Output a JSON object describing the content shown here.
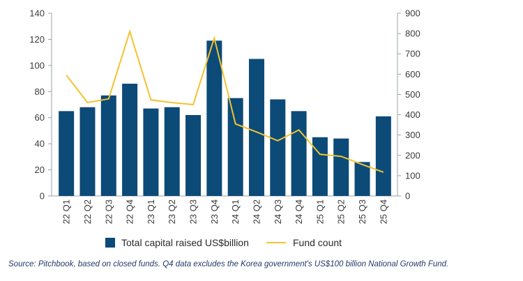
{
  "chart_data": {
    "type": "bar+line",
    "categories": [
      "22 Q1",
      "22 Q2",
      "22 Q3",
      "22 Q4",
      "23 Q1",
      "23 Q2",
      "23 Q3",
      "23 Q4",
      "24 Q1",
      "24 Q2",
      "24 Q3",
      "24 Q4",
      "25 Q1",
      "25 Q2",
      "25 Q3",
      "25 Q4"
    ],
    "series": [
      {
        "name": "Total capital raised US$billion",
        "type": "bar",
        "axis": "left",
        "color": "#0c4a78",
        "values": [
          65,
          68,
          77,
          86,
          67,
          68,
          62,
          119,
          75,
          105,
          74,
          65,
          45,
          44,
          26,
          61
        ]
      },
      {
        "name": "Fund count",
        "type": "line",
        "axis": "right",
        "color": "#f2c330",
        "values": [
          595,
          460,
          478,
          810,
          473,
          460,
          450,
          778,
          355,
          315,
          272,
          325,
          205,
          195,
          155,
          117
        ]
      }
    ],
    "y_left": {
      "min": 0,
      "max": 140,
      "ticks": [
        "0",
        "20",
        "40",
        "60",
        "80",
        "100",
        "120",
        "140"
      ]
    },
    "y_right": {
      "min": 0,
      "max": 900,
      "ticks": [
        "0",
        "100",
        "200",
        "300",
        "400",
        "500",
        "600",
        "700",
        "800",
        "900"
      ]
    },
    "legend_position": "bottom-center",
    "grid": false
  },
  "source_note": "Source: Pitchbook, based on closed funds. Q4 data excludes the Korea government's US$100 billion National Growth Fund."
}
